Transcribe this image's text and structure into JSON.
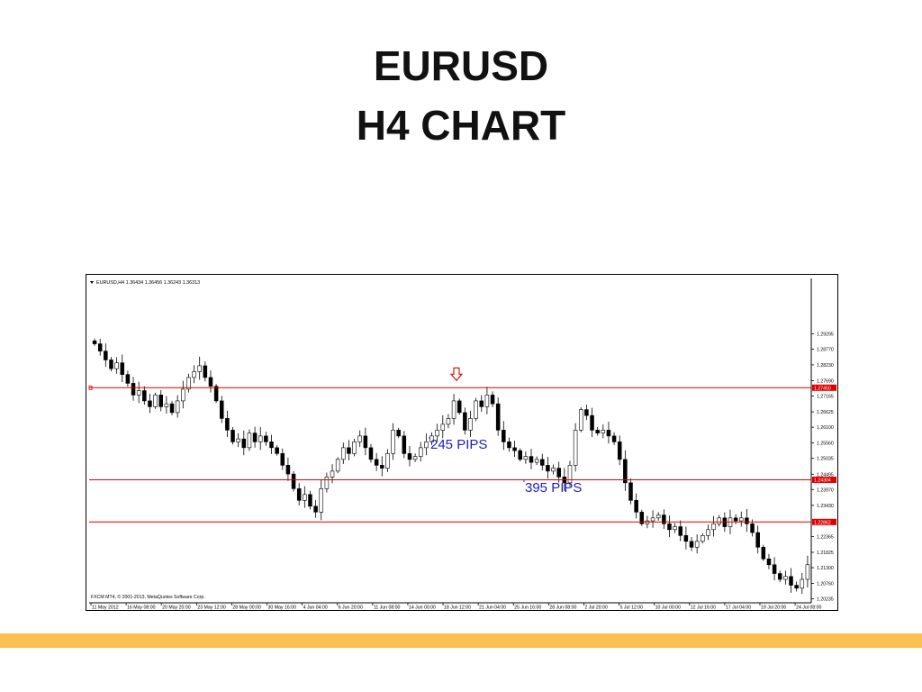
{
  "slide": {
    "title_line1": "EURUSD",
    "title_line2": "H4 CHART",
    "accent_color": "#fbc04f"
  },
  "chart_data": {
    "type": "candlestick",
    "symbol_header": "EURUSD,H4  1.36434 1.36456 1.36243 1.36313",
    "footer": "FXCM MT4, © 2001-2013, MetaQuotes Software Corp.",
    "ylim": [
      1.201,
      1.31
    ],
    "y_ticks": [
      "1.29295",
      "1.28770",
      "1.28230",
      "1.27690",
      "1.27165",
      "1.26625",
      "1.26100",
      "1.25560",
      "1.25035",
      "1.24495",
      "1.23970",
      "1.23430",
      "1.22365",
      "1.21825",
      "1.21300",
      "1.20760",
      "1.20235"
    ],
    "x_ticks": [
      "11 May 2012",
      "16 May 08:00",
      "20 May 20:00",
      "23 May 12:00",
      "28 May 00:00",
      "30 May 16:00",
      "4 Jun 04:00",
      "6 Jun 20:00",
      "11 Jun 08:00",
      "14 Jun 00:00",
      "18 Jun 12:00",
      "21 Jun 04:00",
      "25 Jun 16:00",
      "28 Jun 08:00",
      "2 Jul 20:00",
      "5 Jul 12:00",
      "10 Jul 00:00",
      "12 Jul 16:00",
      "17 Jul 04:00",
      "19 Jul 20:00",
      "24 Jul 08:00"
    ],
    "hlines": [
      {
        "value": 1.2745,
        "label": "1.27450",
        "color": "#e00000"
      },
      {
        "value": 1.24304,
        "label": "1.24304",
        "color": "#e00000"
      },
      {
        "value": 1.22862,
        "label": "1.22862",
        "color": "#e00000"
      }
    ],
    "annotations": [
      {
        "text": "245 PIPS",
        "color": "#2020c0"
      },
      {
        "text": "395 PIPS",
        "color": "#2020c0"
      }
    ],
    "arrow_marker": {
      "shape": "down-arrow",
      "color": "#e00000"
    },
    "price_path": [
      1.2895,
      1.287,
      1.284,
      1.281,
      1.283,
      1.279,
      1.276,
      1.272,
      1.2735,
      1.27,
      1.268,
      1.272,
      1.268,
      1.269,
      1.266,
      1.27,
      1.274,
      1.278,
      1.28,
      1.282,
      1.278,
      1.275,
      1.27,
      1.264,
      1.26,
      1.256,
      1.257,
      1.254,
      1.259,
      1.256,
      1.258,
      1.256,
      1.254,
      1.252,
      1.248,
      1.245,
      1.24,
      1.236,
      1.238,
      1.234,
      1.232,
      1.24,
      1.244,
      1.246,
      1.25,
      1.254,
      1.252,
      1.256,
      1.258,
      1.254,
      1.25,
      1.248,
      1.247,
      1.252,
      1.26,
      1.258,
      1.252,
      1.25,
      1.251,
      1.254,
      1.256,
      1.258,
      1.26,
      1.262,
      1.264,
      1.27,
      1.266,
      1.26,
      1.264,
      1.27,
      1.268,
      1.272,
      1.269,
      1.26,
      1.256,
      1.254,
      1.253,
      1.25,
      1.251,
      1.249,
      1.25,
      1.248,
      1.246,
      1.247,
      1.244,
      1.242,
      1.248,
      1.26,
      1.267,
      1.265,
      1.26,
      1.259,
      1.26,
      1.258,
      1.256,
      1.25,
      1.242,
      1.236,
      1.232,
      1.228,
      1.229,
      1.23,
      1.231,
      1.228,
      1.226,
      1.227,
      1.224,
      1.222,
      1.22,
      1.222,
      1.224,
      1.226,
      1.228,
      1.23,
      1.227,
      1.23,
      1.229,
      1.23,
      1.228,
      1.225,
      1.22,
      1.216,
      1.214,
      1.211,
      1.209,
      1.21,
      1.207,
      1.206,
      1.209,
      1.214
    ]
  }
}
